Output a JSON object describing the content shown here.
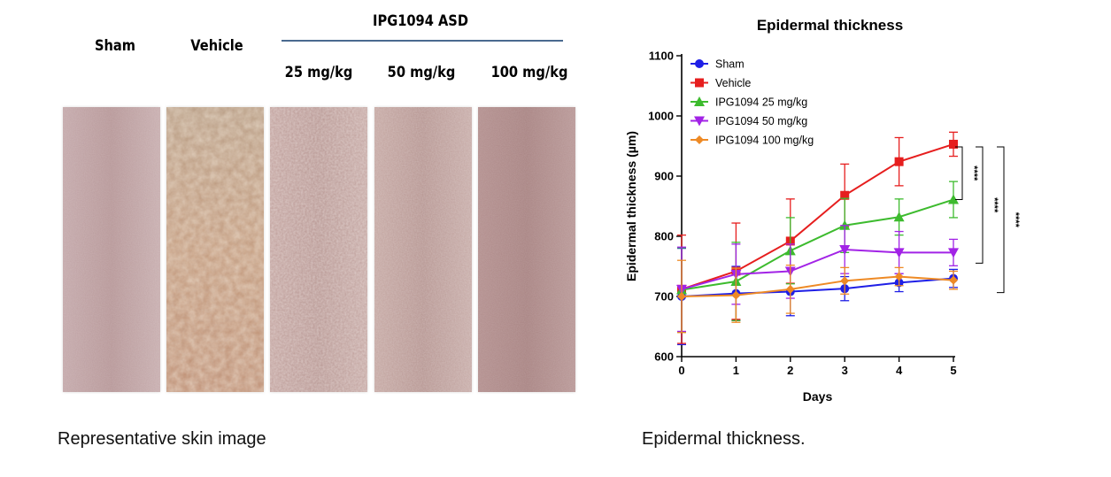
{
  "figure": {
    "left": {
      "headers": {
        "sham": "Sham",
        "vehicle": "Vehicle",
        "group": "IPG1094 ASD"
      },
      "doses": [
        "25 mg/kg",
        "50 mg/kg",
        "100 mg/kg"
      ],
      "caption": "Representative skin image"
    },
    "right": {
      "caption": "Epidermal thickness."
    }
  },
  "chart_data": {
    "type": "line",
    "title": "Epidermal thickness",
    "xlabel": "Days",
    "ylabel": "Epidermal thickness (µm)",
    "xlim": [
      0,
      5
    ],
    "ylim": [
      600,
      1100
    ],
    "x": [
      0,
      1,
      2,
      3,
      4,
      5
    ],
    "xticks": [
      "0",
      "1",
      "2",
      "3",
      "4",
      "5"
    ],
    "yticks": [
      "600",
      "700",
      "800",
      "900",
      "1000",
      "1100"
    ],
    "legend_position": "top-left",
    "series": [
      {
        "name": "Sham",
        "color": "#1f1fe6",
        "marker": "circle",
        "values": [
          700,
          705,
          708,
          713,
          723,
          730
        ],
        "err": [
          80,
          45,
          40,
          20,
          15,
          15
        ]
      },
      {
        "name": "Vehicle",
        "color": "#e61e1e",
        "marker": "square",
        "values": [
          712,
          742,
          792,
          868,
          924,
          953
        ],
        "err": [
          90,
          80,
          70,
          52,
          40,
          20
        ]
      },
      {
        "name": "IPG1094 25 mg/kg",
        "color": "#3dbb2e",
        "marker": "triangle-up",
        "values": [
          711,
          725,
          776,
          818,
          832,
          861
        ],
        "err": [
          70,
          65,
          55,
          45,
          30,
          30
        ]
      },
      {
        "name": "IPG1094 50 mg/kg",
        "color": "#a223e6",
        "marker": "triangle-down",
        "values": [
          712,
          737,
          742,
          778,
          773,
          773
        ],
        "err": [
          70,
          50,
          45,
          40,
          35,
          22
        ]
      },
      {
        "name": "IPG1094 100 mg/kg",
        "color": "#ee8a25",
        "marker": "diamond",
        "values": [
          700,
          702,
          712,
          726,
          733,
          727
        ],
        "err": [
          60,
          45,
          40,
          22,
          15,
          15
        ]
      }
    ],
    "significance": [
      {
        "label": "****",
        "from_series": "Vehicle",
        "to_series": "IPG1094 25 mg/kg"
      },
      {
        "label": "****",
        "from_series": "Vehicle",
        "to_series": "IPG1094 50 mg/kg"
      },
      {
        "label": "****",
        "from_series": "Vehicle",
        "to_series": "IPG1094 100 mg/kg"
      }
    ]
  }
}
